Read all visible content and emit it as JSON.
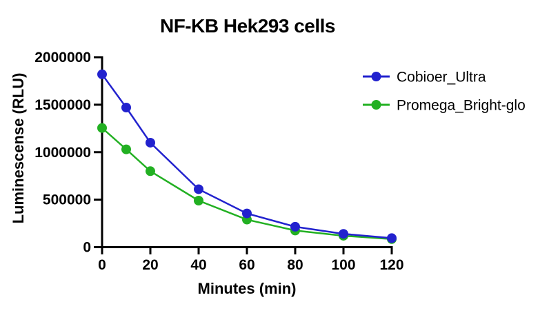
{
  "figure": {
    "background": "#ffffff",
    "axis_color": "#000000",
    "text_color": "#000000"
  },
  "chart_data": {
    "type": "line",
    "title": "NF-KB Hek293 cells",
    "xlabel": "Minutes (min)",
    "ylabel": "Luminescense (RLU)",
    "x": [
      0,
      10,
      20,
      40,
      60,
      80,
      100,
      120
    ],
    "series": [
      {
        "name": "Cobioer_Ultra",
        "color": "#2222CE",
        "marker": "circle",
        "values": [
          1820000,
          1470000,
          1100000,
          610000,
          355000,
          215000,
          140000,
          95000
        ]
      },
      {
        "name": "Promega_Bright-glo",
        "color": "#22B022",
        "marker": "circle",
        "values": [
          1255000,
          1030000,
          800000,
          490000,
          290000,
          175000,
          120000,
          85000
        ]
      }
    ],
    "xticks": [
      0,
      20,
      40,
      60,
      80,
      100,
      120
    ],
    "yticks": [
      0,
      500000,
      1000000,
      1500000,
      2000000
    ],
    "xlim": [
      0,
      120
    ],
    "ylim": [
      0,
      2000000
    ],
    "grid": false,
    "legend_position": "right"
  }
}
